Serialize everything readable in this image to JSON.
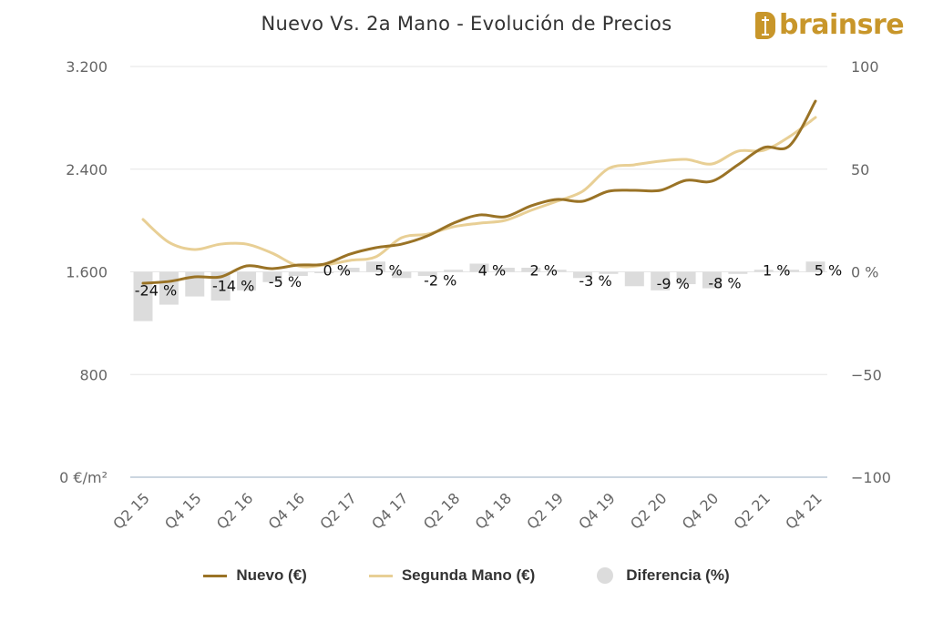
{
  "title": "Nuevo Vs. 2a Mano - Evolución de Precios",
  "logo": {
    "text": "brainsre",
    "color": "#c8962a"
  },
  "legend": [
    {
      "label": "Nuevo (€)",
      "color": "#9a7326"
    },
    {
      "label": "Segunda Mano (€)",
      "color": "#e8cf95"
    },
    {
      "label": "Diferencia (%)",
      "color": "#dcdcdc"
    }
  ],
  "chart_data": {
    "type": "line",
    "title": "Nuevo Vs. 2a Mano - Evolución de Precios",
    "x": [
      "Q2 15",
      "Q3 15",
      "Q4 15",
      "Q1 16",
      "Q2 16",
      "Q3 16",
      "Q4 16",
      "Q1 17",
      "Q2 17",
      "Q3 17",
      "Q4 17",
      "Q1 18",
      "Q2 18",
      "Q3 18",
      "Q4 18",
      "Q1 19",
      "Q2 19",
      "Q3 19",
      "Q4 19",
      "Q1 20",
      "Q2 20",
      "Q3 20",
      "Q4 20",
      "Q1 21",
      "Q2 21",
      "Q3 21",
      "Q4 21"
    ],
    "x_tick_labels": [
      "Q2 15",
      "Q4 15",
      "Q2 16",
      "Q4 16",
      "Q2 17",
      "Q4 17",
      "Q2 18",
      "Q4 18",
      "Q2 19",
      "Q4 19",
      "Q2 20",
      "Q4 20",
      "Q2 21",
      "Q4 21"
    ],
    "series": [
      {
        "name": "Nuevo (€)",
        "type": "line",
        "axis": "left",
        "color": "#9a7326",
        "values": [
          1511,
          1525,
          1561,
          1561,
          1646,
          1625,
          1653,
          1660,
          1738,
          1788,
          1816,
          1880,
          1979,
          2043,
          2029,
          2114,
          2164,
          2150,
          2228,
          2235,
          2235,
          2313,
          2306,
          2434,
          2568,
          2583,
          2930
        ]
      },
      {
        "name": "Segunda Mano (€)",
        "type": "line",
        "axis": "left",
        "color": "#e8cf95",
        "values": [
          2008,
          1830,
          1774,
          1816,
          1816,
          1745,
          1646,
          1653,
          1689,
          1717,
          1866,
          1894,
          1951,
          1979,
          2001,
          2079,
          2150,
          2228,
          2405,
          2434,
          2462,
          2476,
          2441,
          2540,
          2547,
          2654,
          2803
        ]
      },
      {
        "name": "Diferencia (%)",
        "type": "bar",
        "axis": "right",
        "color": "#dcdcdc",
        "values": [
          -24,
          -16,
          -12,
          -14,
          -9,
          -5,
          -2,
          0,
          2,
          5,
          -3,
          -2,
          1,
          4,
          2,
          2,
          1,
          -3,
          -1,
          -7,
          -9,
          -6,
          -8,
          -1,
          1,
          1,
          5
        ]
      }
    ],
    "data_labels": [
      {
        "index": 0,
        "text": "-24 %"
      },
      {
        "index": 3,
        "text": "-14 %"
      },
      {
        "index": 5,
        "text": "-5 %"
      },
      {
        "index": 7,
        "text": "0 %"
      },
      {
        "index": 9,
        "text": "5 %"
      },
      {
        "index": 11,
        "text": "-2 %"
      },
      {
        "index": 13,
        "text": "4 %"
      },
      {
        "index": 15,
        "text": "2 %"
      },
      {
        "index": 17,
        "text": "-3 %"
      },
      {
        "index": 20,
        "text": "-9 %"
      },
      {
        "index": 22,
        "text": "-8 %"
      },
      {
        "index": 24,
        "text": "1 %"
      },
      {
        "index": 26,
        "text": "5 %"
      }
    ],
    "y_left": {
      "ticks": [
        0,
        800,
        1600,
        2400,
        3200
      ],
      "tick_labels": [
        "0 €/m²",
        "800",
        "1.600",
        "2.400",
        "3.200"
      ],
      "range": [
        0,
        3200
      ]
    },
    "y_right": {
      "ticks": [
        -100,
        -50,
        0,
        50,
        100
      ],
      "tick_labels": [
        "−100",
        "−50",
        "0 %",
        "50",
        "100"
      ],
      "range": [
        -100,
        100
      ]
    },
    "grid": true
  }
}
